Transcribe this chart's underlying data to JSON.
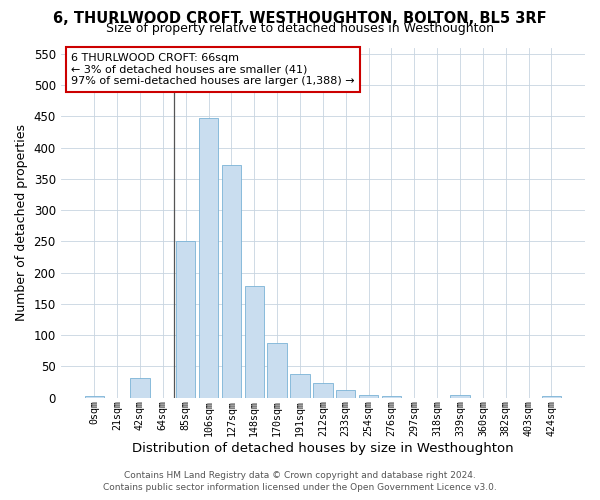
{
  "title": "6, THURLWOOD CROFT, WESTHOUGHTON, BOLTON, BL5 3RF",
  "subtitle": "Size of property relative to detached houses in Westhoughton",
  "xlabel": "Distribution of detached houses by size in Westhoughton",
  "ylabel": "Number of detached properties",
  "bar_color": "#c9ddef",
  "bar_edge_color": "#7ab3d6",
  "background_color": "#ffffff",
  "grid_color": "#c8d4e0",
  "annotation_box_color": "#cc0000",
  "annotation_line1": "6 THURLWOOD CROFT: 66sqm",
  "annotation_line2": "← 3% of detached houses are smaller (41)",
  "annotation_line3": "97% of semi-detached houses are larger (1,388) →",
  "footer_line1": "Contains HM Land Registry data © Crown copyright and database right 2024.",
  "footer_line2": "Contains public sector information licensed under the Open Government Licence v3.0.",
  "bin_labels": [
    "0sqm",
    "21sqm",
    "42sqm",
    "64sqm",
    "85sqm",
    "106sqm",
    "127sqm",
    "148sqm",
    "170sqm",
    "191sqm",
    "212sqm",
    "233sqm",
    "254sqm",
    "276sqm",
    "297sqm",
    "318sqm",
    "339sqm",
    "360sqm",
    "382sqm",
    "403sqm",
    "424sqm"
  ],
  "bar_heights": [
    3,
    0,
    32,
    0,
    250,
    447,
    372,
    178,
    87,
    38,
    23,
    12,
    5,
    2,
    0,
    0,
    4,
    0,
    0,
    0,
    3
  ],
  "ylim": [
    0,
    560
  ],
  "yticks": [
    0,
    50,
    100,
    150,
    200,
    250,
    300,
    350,
    400,
    450,
    500,
    550
  ],
  "vline_x_index": 3.5,
  "title_fontsize": 10.5,
  "subtitle_fontsize": 9,
  "ylabel_fontsize": 9,
  "xlabel_fontsize": 9.5
}
